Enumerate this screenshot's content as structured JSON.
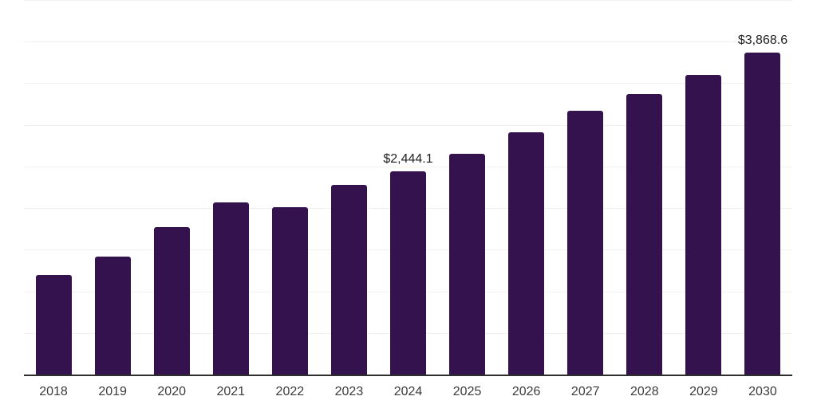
{
  "chart_data": {
    "type": "bar",
    "title": "",
    "xlabel": "",
    "ylabel": "",
    "categories": [
      "2018",
      "2019",
      "2020",
      "2021",
      "2022",
      "2023",
      "2024",
      "2025",
      "2026",
      "2027",
      "2028",
      "2029",
      "2030"
    ],
    "values": [
      1200,
      1420,
      1775,
      2065,
      2015,
      2280,
      2444.1,
      2655,
      2915,
      3165,
      3370,
      3600,
      3868.6
    ],
    "data_labels": {
      "2024": "$2,444.1",
      "2030": "$3,868.6"
    },
    "ylim": [
      0,
      4500
    ],
    "gridline_step": 500,
    "grid": true,
    "legend": false,
    "colors": {
      "bar": "#34124D",
      "axis_line": "#2E2E2E",
      "gridline": "#F1F1F1",
      "data_label": "#1F1F1F",
      "tick_label": "#3C3C3C",
      "background": "#FFFFFF"
    }
  }
}
